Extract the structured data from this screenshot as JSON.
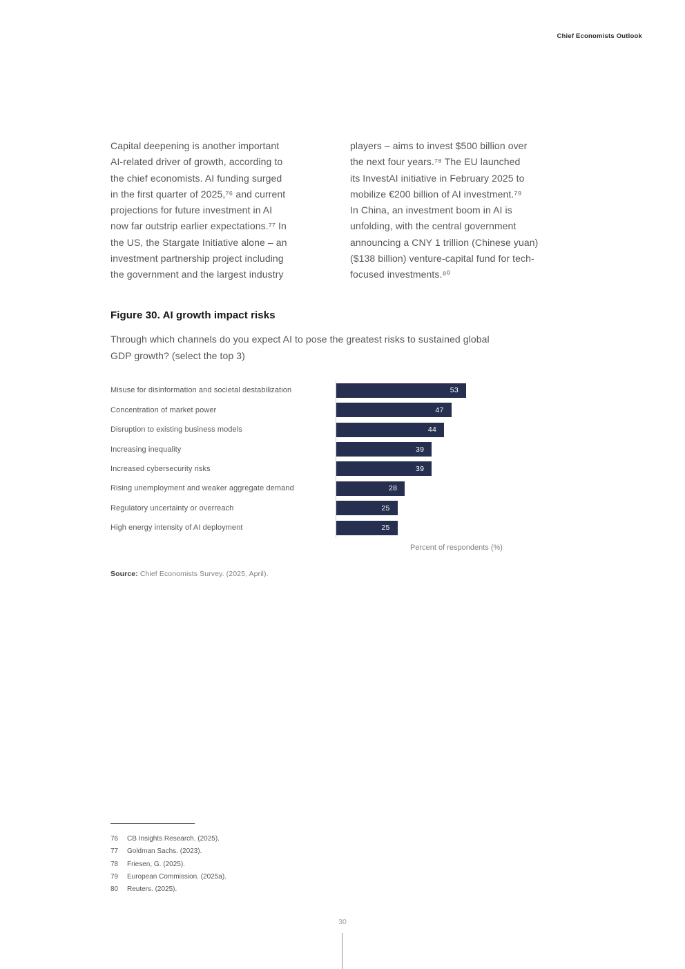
{
  "page": {
    "header": "Chief Economists Outlook",
    "page_number": "30"
  },
  "article": {
    "col_left": "Capital deepening is another important\nAI-related driver of growth, according to\nthe chief economists. AI funding surged\nin the first quarter of 2025,⁷⁶ and current\nprojections for future investment in AI\nnow far outstrip earlier expectations.⁷⁷ In\nthe US, the Stargate Initiative alone – an\ninvestment partnership project including\nthe government and the largest industry",
    "col_right": "players – aims to invest $500 billion over\nthe next four years.⁷⁸ The EU launched\nits InvestAI initiative in February 2025 to\nmobilize €200 billion of AI investment.⁷⁹\nIn China, an investment boom in AI is\nunfolding, with the central government\nannouncing a CNY 1 trillion (Chinese yuan)\n($138 billion) venture-capital fund for tech-\nfocused investments.⁸⁰"
  },
  "figure": {
    "title": "Figure 30. AI growth impact risks",
    "question": "Through which channels do you expect AI to pose the greatest risks to sustained global\nGDP growth? (select the top 3)",
    "source_label": "Source:",
    "source_text": " Chief Economists Survey. (2025, April)."
  },
  "chart_data": {
    "type": "bar",
    "orientation": "horizontal",
    "title": "Figure 30. AI growth impact risks",
    "categories": [
      "Misuse for disinformation and societal destabilization",
      "Concentration of market power",
      "Disruption to existing business models",
      "Increasing inequality",
      "Increased cybersecurity risks",
      "Rising unemployment and weaker aggregate demand",
      "Regulatory uncertainty or overreach",
      "High energy intensity of AI deployment"
    ],
    "values": [
      53,
      47,
      44,
      39,
      39,
      28,
      25,
      25
    ],
    "xlabel": "Percent of respondents (%)",
    "value_labels_inside_bars": true,
    "bar_color": "#262f4f",
    "value_label_color": "#ffffff",
    "axis_line_color": "#c9c9c9",
    "legend": "none",
    "grid": "off"
  },
  "footnotes": [
    {
      "num": "76",
      "text": "CB Insights Research. (2025)."
    },
    {
      "num": "77",
      "text": "Goldman Sachs. (2023)."
    },
    {
      "num": "78",
      "text": "Friesen, G. (2025)."
    },
    {
      "num": "79",
      "text": "European Commission. (2025a)."
    },
    {
      "num": "80",
      "text": "Reuters. (2025)."
    }
  ]
}
